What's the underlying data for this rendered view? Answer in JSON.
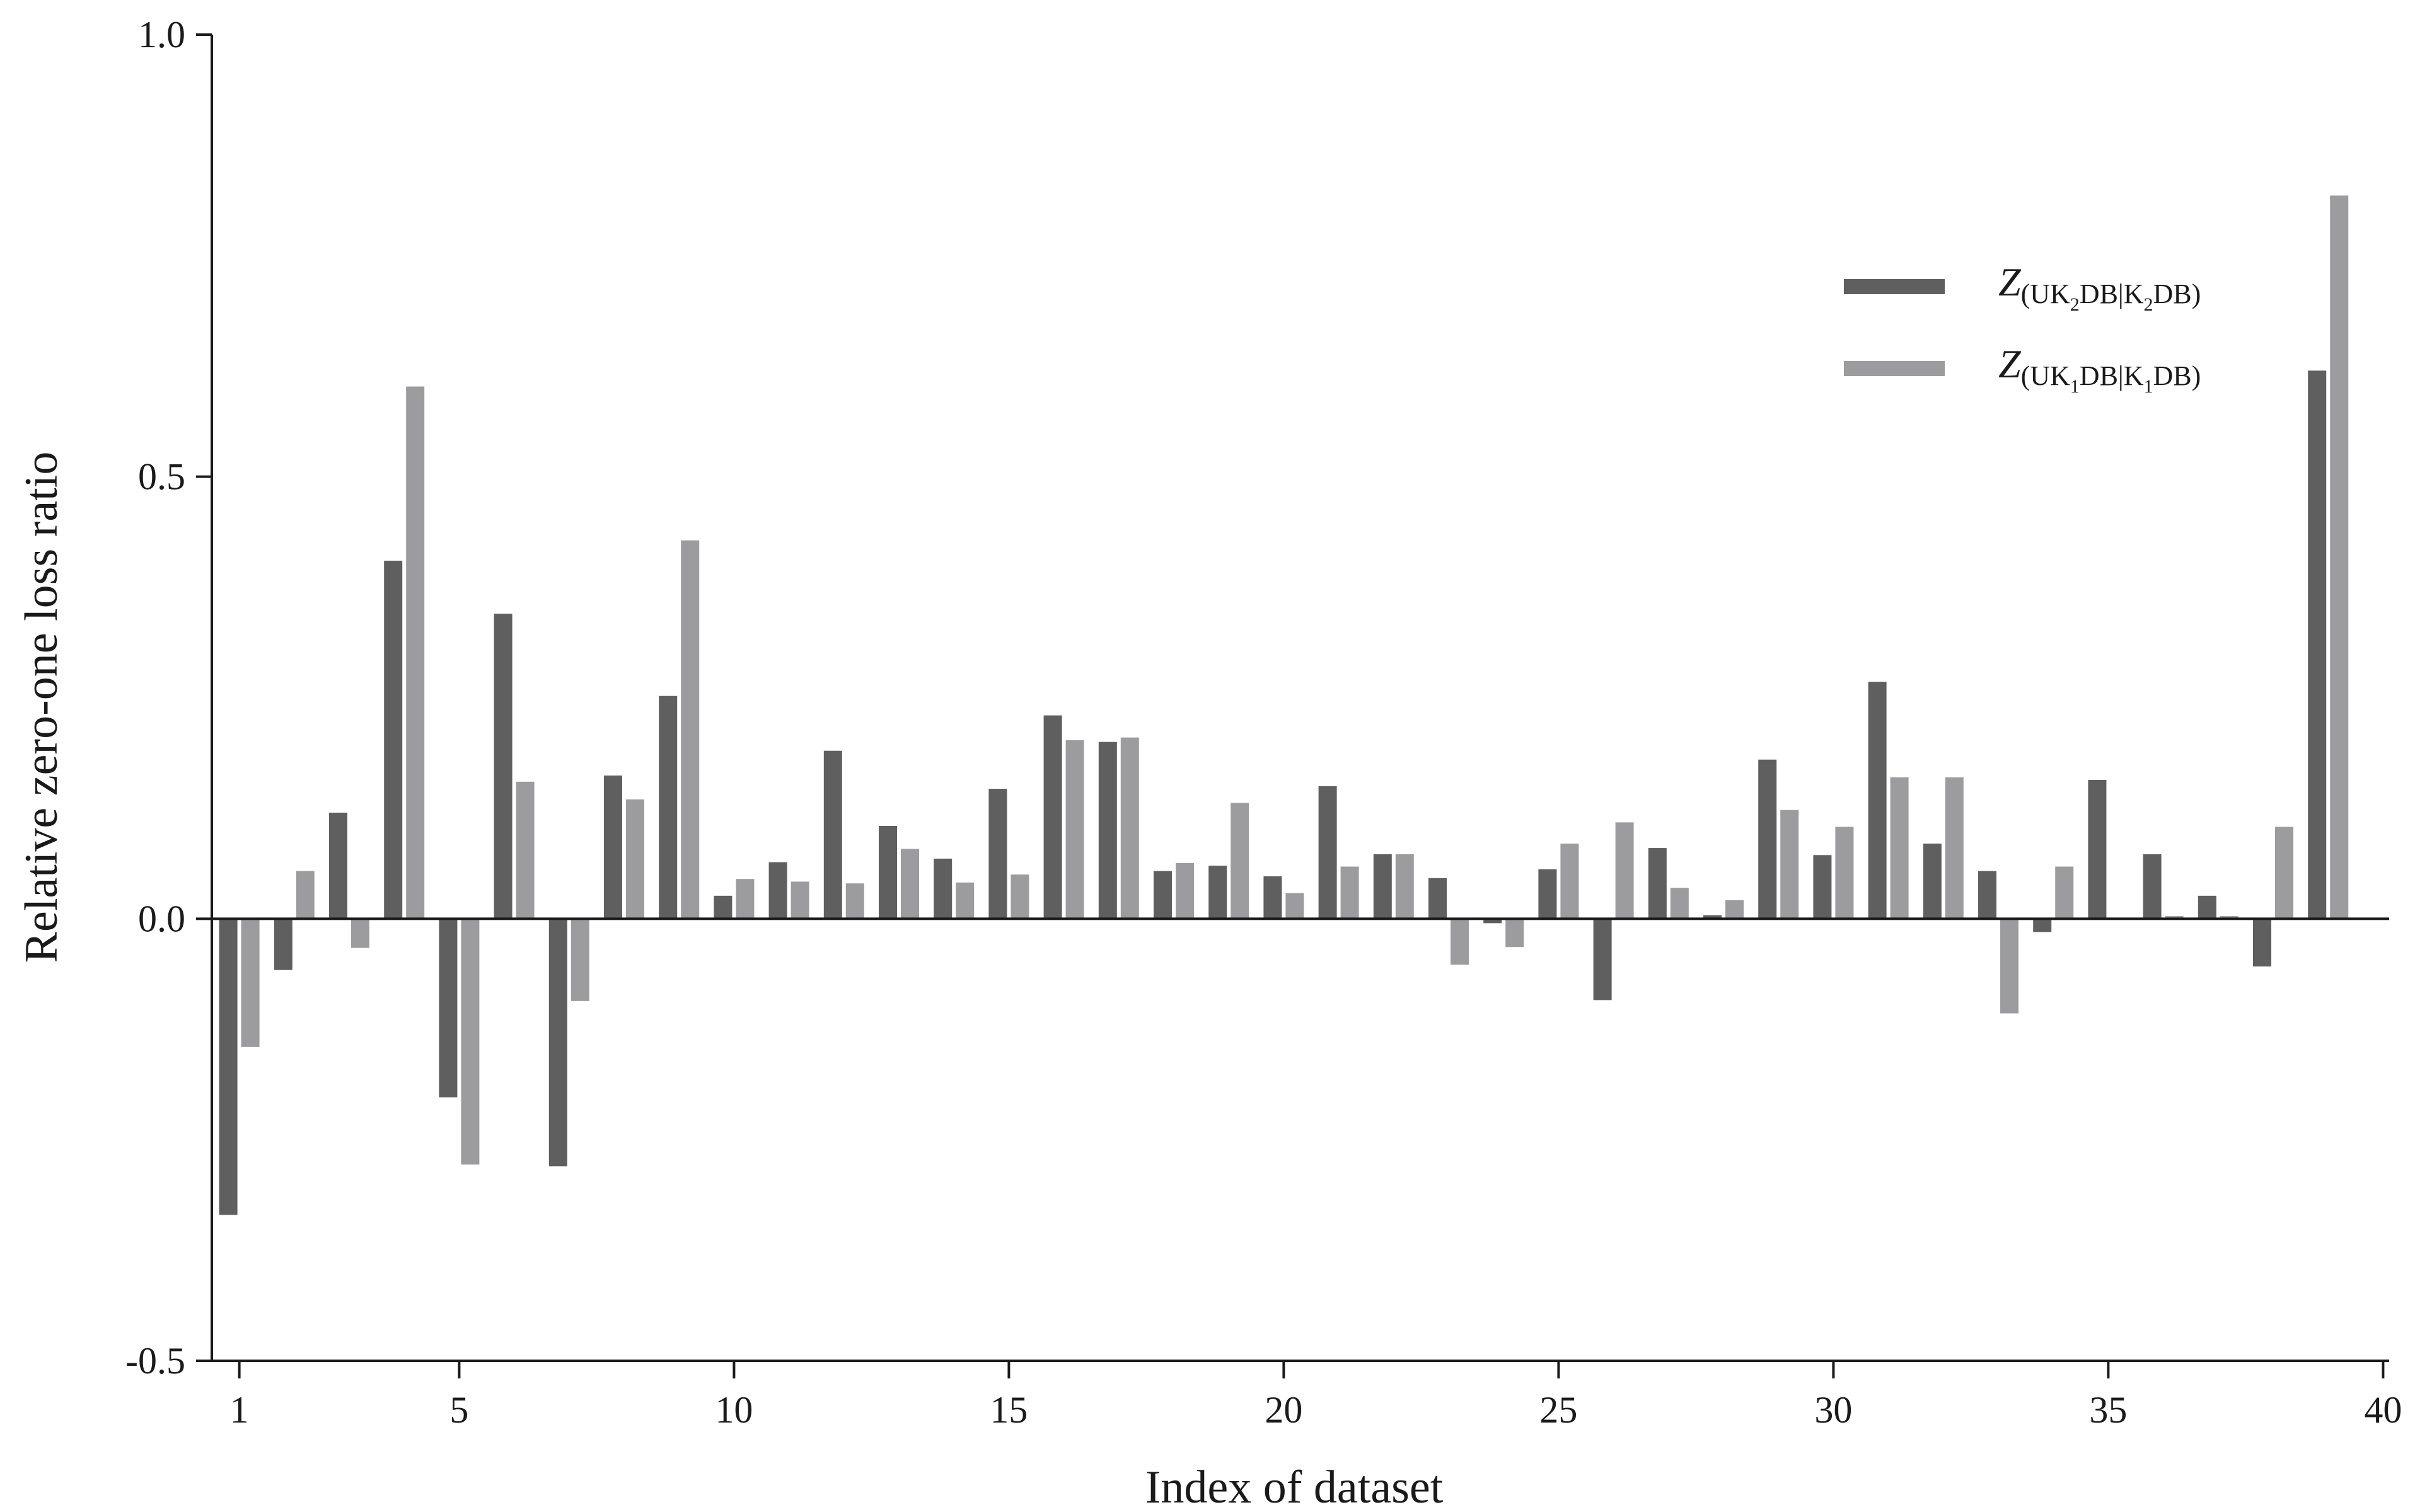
{
  "chart_data": {
    "type": "bar",
    "xlabel": "Index of dataset",
    "ylabel": "Relative zero-one loss ratio",
    "ylim": [
      -0.5,
      1.0
    ],
    "yticks": [
      -0.5,
      0.0,
      0.5,
      1.0
    ],
    "ytick_labels": [
      "-0.5",
      "0.0",
      "0.5",
      "1.0"
    ],
    "xtick_positions": [
      1,
      5,
      10,
      15,
      20,
      25,
      30,
      35,
      40
    ],
    "xtick_labels": [
      "1",
      "5",
      "10",
      "15",
      "20",
      "25",
      "30",
      "35",
      "40"
    ],
    "categories": [
      1,
      2,
      3,
      4,
      5,
      6,
      7,
      8,
      9,
      10,
      11,
      12,
      13,
      14,
      15,
      16,
      17,
      18,
      19,
      20,
      21,
      22,
      23,
      24,
      25,
      26,
      27,
      28,
      29,
      30,
      31,
      32,
      33,
      34,
      35,
      36,
      37,
      38,
      39
    ],
    "legend_position": "top-right",
    "series": [
      {
        "legend": {
          "italic": "Z",
          "pre": "(UK",
          "sub": "2",
          "mid": "DB|K",
          "sub2": "2",
          "post": "DB)"
        },
        "color": "#5f5f5f",
        "values": [
          -0.335,
          -0.058,
          0.12,
          0.405,
          -0.202,
          0.345,
          -0.28,
          0.162,
          0.252,
          0.026,
          0.064,
          0.19,
          0.105,
          0.068,
          0.147,
          0.23,
          0.2,
          0.054,
          0.06,
          0.048,
          0.15,
          0.073,
          0.046,
          -0.005,
          0.056,
          -0.092,
          0.08,
          0.004,
          0.18,
          0.072,
          0.268,
          0.085,
          0.054,
          -0.015,
          0.157,
          0.073,
          0.026,
          -0.054,
          0.62
        ]
      },
      {
        "legend": {
          "italic": "Z",
          "pre": "(UK",
          "sub": "1",
          "mid": "DB|K",
          "sub2": "1",
          "post": "DB)"
        },
        "color": "#9c9c9f",
        "values": [
          -0.145,
          0.054,
          -0.033,
          0.602,
          -0.278,
          0.155,
          -0.093,
          0.135,
          0.428,
          0.045,
          0.042,
          0.04,
          0.079,
          0.041,
          0.05,
          0.202,
          0.205,
          0.063,
          0.131,
          0.029,
          0.059,
          0.073,
          -0.052,
          -0.032,
          0.085,
          0.109,
          0.035,
          0.021,
          0.123,
          0.104,
          0.16,
          0.16,
          -0.107,
          0.059,
          0.0,
          0.003,
          0.003,
          0.104,
          0.818
        ]
      }
    ]
  }
}
